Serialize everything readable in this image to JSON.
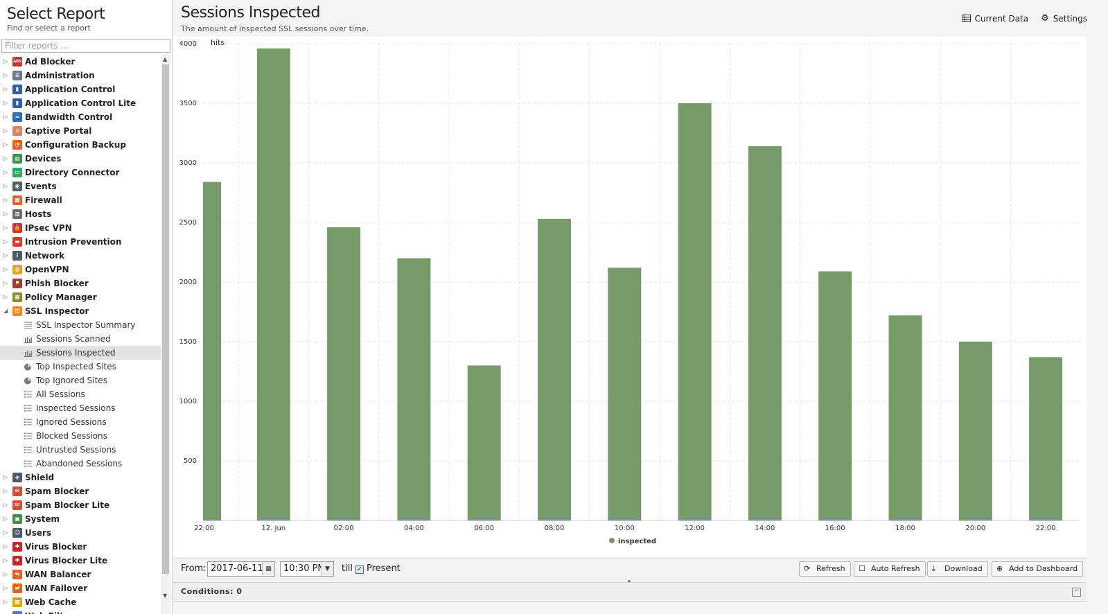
{
  "left": {
    "title": "Select Report",
    "subtitle": "Find or select a report",
    "filter_placeholder": "Filter reports ..."
  },
  "tree": [
    {
      "label": "Ad Blocker",
      "icon": "ad-blocker-icon",
      "color": "#c0392b",
      "glyph": "ADS"
    },
    {
      "label": "Administration",
      "icon": "administration-icon",
      "color": "#6b7b8c",
      "glyph": "≡"
    },
    {
      "label": "Application Control",
      "icon": "application-control-icon",
      "color": "#2e5fa8",
      "glyph": "▮"
    },
    {
      "label": "Application Control Lite",
      "icon": "application-control-lite-icon",
      "color": "#2e5fa8",
      "glyph": "▮"
    },
    {
      "label": "Bandwidth Control",
      "icon": "bandwidth-control-icon",
      "color": "#2a6fb5",
      "glyph": "≈"
    },
    {
      "label": "Captive Portal",
      "icon": "captive-portal-icon",
      "color": "#d9845a",
      "glyph": "⌂"
    },
    {
      "label": "Configuration Backup",
      "icon": "configuration-backup-icon",
      "color": "#e0622a",
      "glyph": "◔"
    },
    {
      "label": "Devices",
      "icon": "devices-icon",
      "color": "#3d8f4a",
      "glyph": "▤"
    },
    {
      "label": "Directory Connector",
      "icon": "directory-connector-icon",
      "color": "#3aa370",
      "glyph": "▭"
    },
    {
      "label": "Events",
      "icon": "events-icon",
      "color": "#555e68",
      "glyph": "◉"
    },
    {
      "label": "Firewall",
      "icon": "firewall-icon",
      "color": "#e0672a",
      "glyph": "▦"
    },
    {
      "label": "Hosts",
      "icon": "hosts-icon",
      "color": "#6c6c6c",
      "glyph": "▥"
    },
    {
      "label": "IPsec VPN",
      "icon": "ipsec-vpn-icon",
      "color": "#d0312d",
      "glyph": "🔒"
    },
    {
      "label": "Intrusion Prevention",
      "icon": "intrusion-prevention-icon",
      "color": "#d63a2f",
      "glyph": "▬"
    },
    {
      "label": "Network",
      "icon": "network-icon",
      "color": "#4c5966",
      "glyph": "⋮"
    },
    {
      "label": "OpenVPN",
      "icon": "openvpn-icon",
      "color": "#e3a22a",
      "glyph": "◍"
    },
    {
      "label": "Phish Blocker",
      "icon": "phish-blocker-icon",
      "color": "#a33b2e",
      "glyph": "⚑"
    },
    {
      "label": "Policy Manager",
      "icon": "policy-manager-icon",
      "color": "#8a8f2a",
      "glyph": "▦"
    },
    {
      "label": "SSL Inspector",
      "icon": "ssl-inspector-icon",
      "color": "#f08a24",
      "glyph": "⊡",
      "expanded": true
    }
  ],
  "children": [
    {
      "label": "SSL Inspector Summary",
      "icon": "summary-lines-icon"
    },
    {
      "label": "Sessions Scanned",
      "icon": "bar-chart-icon"
    },
    {
      "label": "Sessions Inspected",
      "icon": "bar-chart-icon",
      "selected": true
    },
    {
      "label": "Top Inspected Sites",
      "icon": "pie-chart-icon"
    },
    {
      "label": "Top Ignored Sites",
      "icon": "pie-chart-icon"
    },
    {
      "label": "All Sessions",
      "icon": "list-icon"
    },
    {
      "label": "Inspected Sessions",
      "icon": "list-icon"
    },
    {
      "label": "Ignored Sessions",
      "icon": "list-icon"
    },
    {
      "label": "Blocked Sessions",
      "icon": "list-icon"
    },
    {
      "label": "Untrusted Sessions",
      "icon": "list-icon"
    },
    {
      "label": "Abandoned Sessions",
      "icon": "list-icon"
    }
  ],
  "tree_after": [
    {
      "label": "Shield",
      "icon": "shield-icon",
      "color": "#4c5966",
      "glyph": "◈"
    },
    {
      "label": "Spam Blocker",
      "icon": "spam-blocker-icon",
      "color": "#c8523a",
      "glyph": "✉"
    },
    {
      "label": "Spam Blocker Lite",
      "icon": "spam-blocker-lite-icon",
      "color": "#c8523a",
      "glyph": "✉"
    },
    {
      "label": "System",
      "icon": "system-icon",
      "color": "#3d8f4a",
      "glyph": "▣"
    },
    {
      "label": "Users",
      "icon": "users-icon",
      "color": "#4c5966",
      "glyph": "☺"
    },
    {
      "label": "Virus Blocker",
      "icon": "virus-blocker-icon",
      "color": "#c4282b",
      "glyph": "✚"
    },
    {
      "label": "Virus Blocker Lite",
      "icon": "virus-blocker-lite-icon",
      "color": "#c4282b",
      "glyph": "✚"
    },
    {
      "label": "WAN Balancer",
      "icon": "wan-balancer-icon",
      "color": "#e0622a",
      "glyph": "⇆"
    },
    {
      "label": "WAN Failover",
      "icon": "wan-failover-icon",
      "color": "#e0622a",
      "glyph": "⇄"
    },
    {
      "label": "Web Cache",
      "icon": "web-cache-icon",
      "color": "#d9a32a",
      "glyph": "▩"
    },
    {
      "label": "Web Filter",
      "icon": "web-filter-icon",
      "color": "#3a7bd5",
      "glyph": "◎"
    }
  ],
  "report": {
    "title": "Sessions Inspected",
    "subtitle": "The amount of inspected SSL sessions over time.",
    "current_data_label": "Current Data",
    "settings_label": "Settings"
  },
  "chart_data": {
    "type": "bar",
    "ylabel": "hits",
    "ylim": [
      0,
      4000
    ],
    "yticks": [
      500,
      1000,
      1500,
      2000,
      2500,
      3000,
      3500,
      4000
    ],
    "x_tick_labels": [
      "22:00",
      "12. Jun",
      "02:00",
      "04:00",
      "06:00",
      "08:00",
      "10:00",
      "12:00",
      "14:00",
      "16:00",
      "18:00",
      "20:00",
      "22:00"
    ],
    "series": [
      {
        "name": "inspected",
        "color": "#769a68",
        "values": [
          2840,
          3960,
          2460,
          2200,
          1300,
          2530,
          2120,
          3500,
          3140,
          2090,
          1720,
          1500,
          1370
        ]
      }
    ],
    "grid": true,
    "legend": "bottom-center"
  },
  "bottom": {
    "from_label": "From:",
    "date_value": "2017-06-11",
    "time_value": "10:30 PM",
    "till_label": "till",
    "present_label": "Present",
    "present_checked": true,
    "refresh_label": "Refresh",
    "auto_refresh_label": "Auto Refresh",
    "download_label": "Download",
    "add_dashboard_label": "Add to Dashboard"
  },
  "conditions": {
    "label": "Conditions: 0"
  }
}
